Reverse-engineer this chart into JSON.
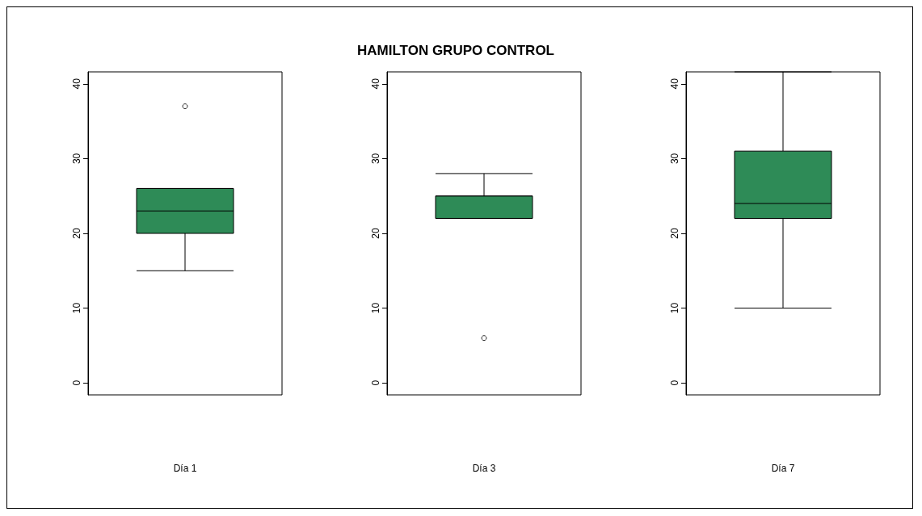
{
  "chart_data": [
    {
      "type": "box",
      "xlabel": "Día 1",
      "categories": [
        null
      ],
      "ylim": [
        -1.6,
        41.6
      ],
      "yticks": [
        0,
        10,
        20,
        30,
        40
      ],
      "marker": "circle",
      "series": [
        {
          "color": "#2e8b57",
          "boxes": [
            {
              "low": 15,
              "q1": 20,
              "median": 23,
              "q3": 26,
              "high": 26,
              "outliers": [
                37
              ]
            }
          ]
        }
      ]
    },
    {
      "type": "box",
      "title": "HAMILTON GRUPO CONTROL",
      "xlabel": "Día 3",
      "categories": [
        null
      ],
      "ylim": [
        -1.6,
        41.6
      ],
      "yticks": [
        0,
        10,
        20,
        30,
        40
      ],
      "marker": "circle",
      "series": [
        {
          "color": "#2e8b57",
          "boxes": [
            {
              "low": 22,
              "q1": 22,
              "median": 25,
              "q3": 25,
              "high": 28,
              "outliers": [
                6
              ]
            }
          ]
        }
      ]
    },
    {
      "type": "box",
      "xlabel": "Día 7",
      "categories": [
        null
      ],
      "ylim": [
        -1.6,
        41.6
      ],
      "yticks": [
        0,
        10,
        20,
        30,
        40
      ],
      "marker": "circle",
      "series": [
        {
          "color": "#2e8b57",
          "boxes": [
            {
              "low": 10,
              "q1": 22,
              "median": 24,
              "q3": 31,
              "high": 41.6
            }
          ]
        }
      ]
    }
  ]
}
